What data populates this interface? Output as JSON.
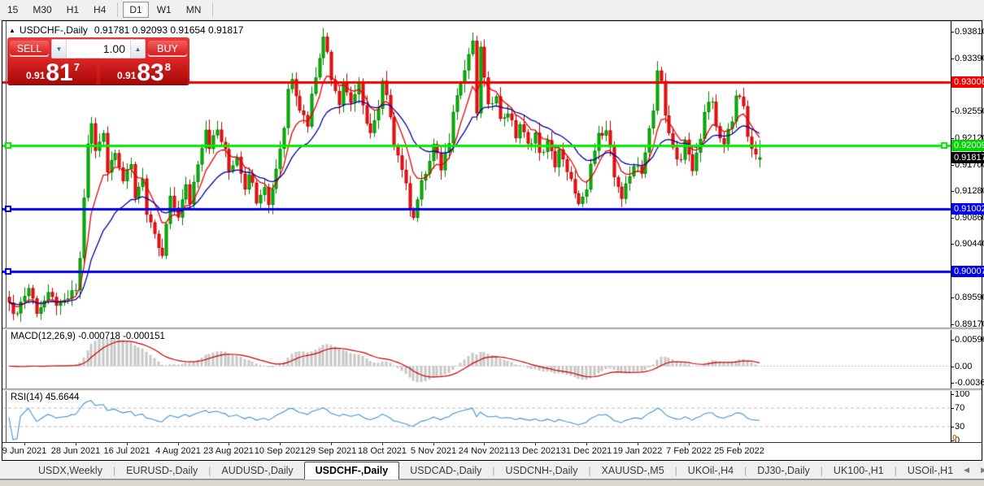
{
  "toolbar": {
    "items": [
      "15",
      "M30",
      "H1",
      "H4",
      "D1",
      "W1",
      "MN"
    ],
    "active": "D1",
    "separators_after": [
      "H4",
      "MN"
    ]
  },
  "chart_header": {
    "collapse_icon": "▲",
    "symbol_period": "USDCHF-,Daily",
    "ohlc_text": "0.91781 0.92093 0.91654 0.91817"
  },
  "trade_panel": {
    "sell_label": "SELL",
    "buy_label": "BUY",
    "volume_value": "1.00",
    "down_arrow": "▼",
    "up_arrow": "▲",
    "sell_prefix": "0.91",
    "sell_big": "81",
    "sell_sup": "7",
    "buy_prefix": "0.91",
    "buy_big": "83",
    "buy_sup": "8"
  },
  "price_axis": {
    "ticks": [
      {
        "text": "0.93810",
        "value": 0.9381
      },
      {
        "text": "0.93390",
        "value": 0.9339
      },
      {
        "text": "0.92970",
        "value": 0.9297
      },
      {
        "text": "0.92550",
        "value": 0.9255
      },
      {
        "text": "0.92120",
        "value": 0.9212
      },
      {
        "text": "0.91700",
        "value": 0.917
      },
      {
        "text": "0.91280",
        "value": 0.9128
      },
      {
        "text": "0.90860",
        "value": 0.9086
      },
      {
        "text": "0.90440",
        "value": 0.9044
      },
      {
        "text": "0.90020",
        "value": 0.9002
      },
      {
        "text": "0.89590",
        "value": 0.8959
      },
      {
        "text": "0.89170",
        "value": 0.8917
      }
    ],
    "badges": [
      {
        "text": "0.93006",
        "value": 0.93006,
        "color": "#f40000"
      },
      {
        "text": "0.92009",
        "value": 0.92009,
        "color": "#00d400"
      },
      {
        "text": "0.91817",
        "value": 0.91817,
        "color": "#000000"
      },
      {
        "text": "0.91002",
        "value": 0.91002,
        "color": "#0000f0"
      },
      {
        "text": "0.90007",
        "value": 0.90007,
        "color": "#0000f0"
      }
    ]
  },
  "indicators": {
    "macd": {
      "label": "MACD(12,26,9) -0.000718 -0.000151",
      "axis": [
        {
          "text": "0.005963",
          "value": 0.005963
        },
        {
          "text": "0.00",
          "value": 0
        },
        {
          "text": "-0.003664",
          "value": -0.003664
        }
      ]
    },
    "rsi": {
      "label": "RSI(14) 45.6644",
      "axis": [
        {
          "text": "100",
          "value": 100
        },
        {
          "text": "70",
          "value": 70
        },
        {
          "text": "30",
          "value": 30
        },
        {
          "text": "0",
          "value": 0
        }
      ]
    }
  },
  "date_axis": [
    "9 Jun 2021",
    "28 Jun 2021",
    "16 Jul 2021",
    "4 Aug 2021",
    "23 Aug 2021",
    "10 Sep 2021",
    "29 Sep 2021",
    "18 Oct 2021",
    "5 Nov 2021",
    "24 Nov 2021",
    "13 Dec 2021",
    "31 Dec 2021",
    "19 Jan 2022",
    "7 Feb 2022",
    "25 Feb 2022"
  ],
  "tabs": {
    "items": [
      "USDX,Weekly",
      "EURUSD-,Daily",
      "AUDUSD-,Daily",
      "USDCHF-,Daily",
      "USDCAD-,Daily",
      "USDCNH-,Daily",
      "XAUUSD-,M5",
      "UKOil-,H4",
      "DJ30-,Daily",
      "UK100-,H1",
      "USOil-,H1"
    ],
    "active_index": 3,
    "scroll_left": "◀",
    "scroll_right": "▶"
  },
  "misc": {
    "scale_zero": "0"
  },
  "chart_data": {
    "type": "candlestick",
    "symbol": "USDCHF-",
    "timeframe": "Daily",
    "current_ohlc": {
      "open": 0.91781,
      "high": 0.92093,
      "low": 0.91654,
      "close": 0.91817
    },
    "bid": "0.91817",
    "ask": "0.91838",
    "y_range": {
      "top": 0.9381,
      "bottom": 0.8917
    },
    "x_dates": [
      "9 Jun 2021",
      "28 Jun 2021",
      "16 Jul 2021",
      "4 Aug 2021",
      "23 Aug 2021",
      "10 Sep 2021",
      "29 Sep 2021",
      "18 Oct 2021",
      "5 Nov 2021",
      "24 Nov 2021",
      "13 Dec 2021",
      "31 Dec 2021",
      "19 Jan 2022",
      "7 Feb 2022",
      "25 Feb 2022"
    ],
    "horizontal_lines": [
      {
        "price": 0.93006,
        "color": "#f40000",
        "width": 3,
        "handles": []
      },
      {
        "price": 0.92009,
        "color": "#00f000",
        "width": 3,
        "handles": [
          "left",
          "right"
        ]
      },
      {
        "price": 0.91002,
        "color": "#0000f0",
        "width": 3,
        "handles": [
          "left"
        ]
      },
      {
        "price": 0.90007,
        "color": "#0000f0",
        "width": 3,
        "handles": [
          "left"
        ]
      }
    ],
    "moving_averages": [
      {
        "period": 8,
        "color": "#e80000"
      },
      {
        "period": 21,
        "color": "#0000a0"
      }
    ],
    "macd": {
      "fast": 12,
      "slow": 26,
      "signal": 9,
      "current_main": -0.000718,
      "current_signal": -0.000151,
      "axis_max": 0.005963,
      "axis_min": -0.003664,
      "histogram_color": "#c6c6c6",
      "signal_color": "#cc0000"
    },
    "rsi": {
      "period": 14,
      "current": 45.6644,
      "color": "#3d95d6",
      "levels": [
        70,
        30
      ],
      "level_color": "#bcbcbc"
    },
    "candle_count": 192,
    "candle_up_color": "#00c000",
    "candle_up_border": "#008000",
    "candle_down_color": "#ff1010",
    "candle_down_border": "#b80000",
    "price_path_anchors": [
      [
        0,
        0.8958
      ],
      [
        1,
        0.8928
      ],
      [
        3,
        0.8952
      ],
      [
        5,
        0.8975
      ],
      [
        7,
        0.8938
      ],
      [
        10,
        0.8962
      ],
      [
        13,
        0.8945
      ],
      [
        17,
        0.8972
      ],
      [
        18,
        0.902
      ],
      [
        19,
        0.912
      ],
      [
        20,
        0.92
      ],
      [
        21,
        0.9235
      ],
      [
        22,
        0.919
      ],
      [
        24,
        0.9225
      ],
      [
        25,
        0.916
      ],
      [
        27,
        0.9195
      ],
      [
        29,
        0.9145
      ],
      [
        31,
        0.9168
      ],
      [
        32,
        0.912
      ],
      [
        34,
        0.9152
      ],
      [
        35,
        0.909
      ],
      [
        37,
        0.9055
      ],
      [
        39,
        0.9022
      ],
      [
        40,
        0.9075
      ],
      [
        41,
        0.9115
      ],
      [
        43,
        0.909
      ],
      [
        45,
        0.9135
      ],
      [
        46,
        0.911
      ],
      [
        48,
        0.9175
      ],
      [
        50,
        0.9228
      ],
      [
        51,
        0.92
      ],
      [
        53,
        0.9225
      ],
      [
        55,
        0.919
      ],
      [
        56,
        0.916
      ],
      [
        58,
        0.9185
      ],
      [
        60,
        0.9135
      ],
      [
        61,
        0.916
      ],
      [
        63,
        0.9115
      ],
      [
        65,
        0.914
      ],
      [
        66,
        0.9105
      ],
      [
        68,
        0.9165
      ],
      [
        70,
        0.923
      ],
      [
        71,
        0.929
      ],
      [
        72,
        0.931
      ],
      [
        74,
        0.926
      ],
      [
        76,
        0.9235
      ],
      [
        77,
        0.928
      ],
      [
        79,
        0.9345
      ],
      [
        80,
        0.937
      ],
      [
        81,
        0.935
      ],
      [
        82,
        0.931
      ],
      [
        84,
        0.927
      ],
      [
        85,
        0.93
      ],
      [
        87,
        0.927
      ],
      [
        89,
        0.9295
      ],
      [
        90,
        0.926
      ],
      [
        92,
        0.922
      ],
      [
        94,
        0.9255
      ],
      [
        95,
        0.93
      ],
      [
        97,
        0.925
      ],
      [
        98,
        0.9205
      ],
      [
        100,
        0.9165
      ],
      [
        102,
        0.9105
      ],
      [
        103,
        0.909
      ],
      [
        105,
        0.914
      ],
      [
        107,
        0.9175
      ],
      [
        108,
        0.92
      ],
      [
        110,
        0.9165
      ],
      [
        112,
        0.921
      ],
      [
        113,
        0.926
      ],
      [
        115,
        0.93
      ],
      [
        117,
        0.934
      ],
      [
        118,
        0.9368
      ],
      [
        119,
        0.9245
      ],
      [
        120,
        0.936
      ],
      [
        121,
        0.9305
      ],
      [
        122,
        0.926
      ],
      [
        124,
        0.9285
      ],
      [
        125,
        0.924
      ],
      [
        127,
        0.9255
      ],
      [
        129,
        0.9215
      ],
      [
        130,
        0.9235
      ],
      [
        132,
        0.92
      ],
      [
        134,
        0.922
      ],
      [
        135,
        0.9185
      ],
      [
        137,
        0.9205
      ],
      [
        139,
        0.917
      ],
      [
        140,
        0.9195
      ],
      [
        142,
        0.9155
      ],
      [
        144,
        0.913
      ],
      [
        145,
        0.9105
      ],
      [
        147,
        0.9125
      ],
      [
        148,
        0.917
      ],
      [
        150,
        0.9215
      ],
      [
        152,
        0.923
      ],
      [
        153,
        0.9195
      ],
      [
        154,
        0.915
      ],
      [
        156,
        0.911
      ],
      [
        157,
        0.914
      ],
      [
        159,
        0.917
      ],
      [
        161,
        0.9155
      ],
      [
        162,
        0.9195
      ],
      [
        164,
        0.926
      ],
      [
        165,
        0.932
      ],
      [
        166,
        0.93
      ],
      [
        167,
        0.9245
      ],
      [
        169,
        0.9195
      ],
      [
        171,
        0.9175
      ],
      [
        172,
        0.9205
      ],
      [
        174,
        0.916
      ],
      [
        176,
        0.9215
      ],
      [
        177,
        0.9255
      ],
      [
        179,
        0.9272
      ],
      [
        180,
        0.9225
      ],
      [
        182,
        0.92
      ],
      [
        184,
        0.9245
      ],
      [
        185,
        0.9285
      ],
      [
        187,
        0.926
      ],
      [
        188,
        0.9215
      ],
      [
        190,
        0.9185
      ],
      [
        191,
        0.91817
      ]
    ]
  }
}
